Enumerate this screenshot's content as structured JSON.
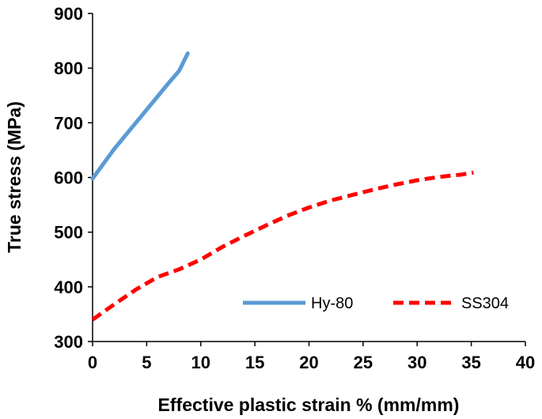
{
  "chart_data": {
    "type": "line",
    "xlabel": "Effective plastic strain % (mm/mm)",
    "ylabel": "True stress  (MPa)",
    "xlim": [
      0,
      40
    ],
    "ylim": [
      300,
      900
    ],
    "x_ticks": [
      0,
      5,
      10,
      15,
      20,
      25,
      30,
      35,
      40
    ],
    "y_ticks": [
      300,
      400,
      500,
      600,
      700,
      800,
      900
    ],
    "grid": false,
    "legend_position": "bottom-right",
    "series": [
      {
        "name": "Hy-80",
        "color": "#5b9bd5",
        "style": "solid",
        "x": [
          0,
          1,
          2,
          3,
          4,
          5,
          6,
          7,
          8,
          8.8
        ],
        "y": [
          598,
          625,
          652,
          676,
          700,
          724,
          748,
          772,
          795,
          827
        ]
      },
      {
        "name": "SS304",
        "color": "#ff0000",
        "style": "dashed",
        "x": [
          0,
          2,
          4,
          6,
          8,
          10,
          12,
          14,
          16,
          18,
          20,
          22,
          24,
          26,
          28,
          30,
          32,
          34,
          35.2
        ],
        "y": [
          340,
          368,
          395,
          418,
          432,
          450,
          473,
          493,
          512,
          530,
          545,
          558,
          568,
          578,
          587,
          595,
          601,
          605,
          609
        ]
      }
    ]
  }
}
